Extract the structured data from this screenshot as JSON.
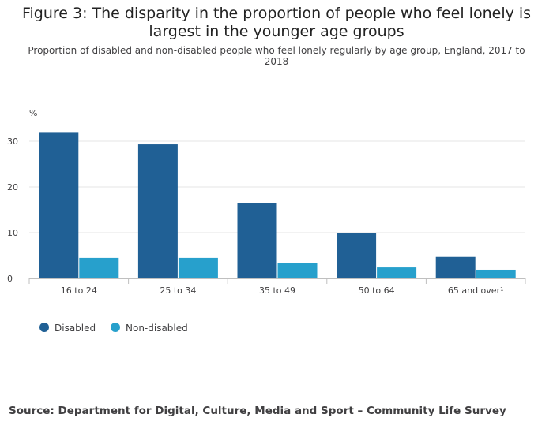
{
  "title": "Figure 3: The disparity in the proportion of people who feel lonely is largest in the younger age groups",
  "subtitle": "Proportion of disabled and non-disabled people who feel lonely regularly by age group, England, 2017 to 2018",
  "source": "Source: Department for Digital, Culture, Media and Sport – Community Life Survey",
  "chart_data": {
    "type": "bar",
    "title": "Figure 3: The disparity in the proportion of people who feel lonely is largest in the younger age groups",
    "subtitle": "Proportion of disabled and non-disabled people who feel lonely regularly by age group, England, 2017 to 2018",
    "ylabel": "%",
    "xlabel": "",
    "categories": [
      "16 to 24",
      "25 to 34",
      "35 to 49",
      "50 to 64",
      "65 and over¹"
    ],
    "series": [
      {
        "name": "Disabled",
        "color": "#206095",
        "values": [
          32.0,
          29.3,
          16.5,
          10.0,
          4.7
        ]
      },
      {
        "name": "Non-disabled",
        "color": "#27a0cc",
        "values": [
          4.5,
          4.5,
          3.3,
          2.4,
          1.9
        ]
      }
    ],
    "ylim": [
      0,
      35
    ],
    "yticks": [
      0,
      10,
      20,
      30
    ],
    "grid": true,
    "legend_position": "bottom-left"
  }
}
